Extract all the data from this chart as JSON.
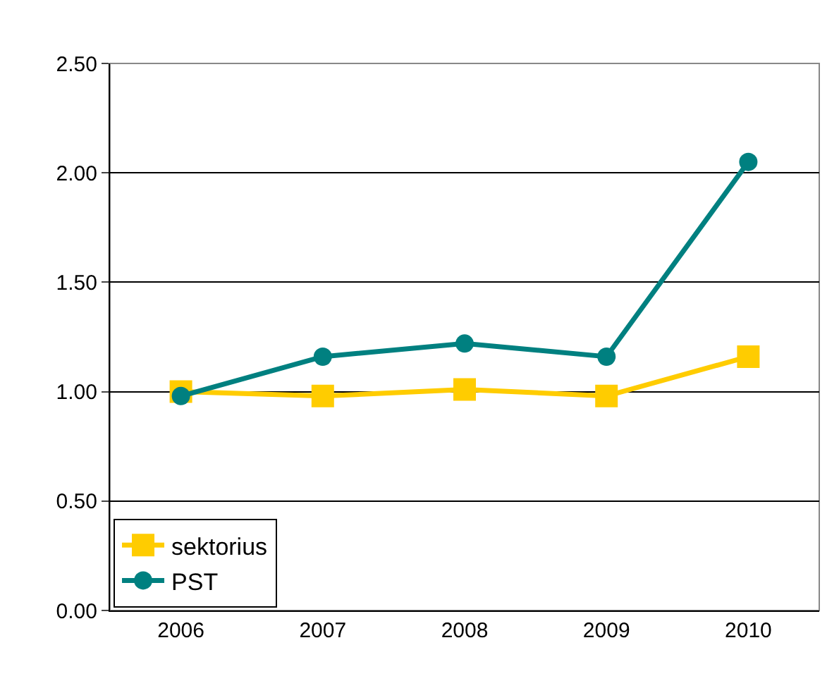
{
  "chart_data": {
    "type": "line",
    "categories": [
      "2006",
      "2007",
      "2008",
      "2009",
      "2010"
    ],
    "series": [
      {
        "name": "sektorius",
        "color": "#ffcc00",
        "values": [
          1.0,
          0.98,
          1.01,
          0.98,
          1.16
        ],
        "marker": "square"
      },
      {
        "name": "PST",
        "color": "#008080",
        "values": [
          0.98,
          1.16,
          1.22,
          1.16,
          2.05
        ],
        "marker": "circle"
      }
    ],
    "ylim": [
      0,
      2.5
    ],
    "yticks": [
      {
        "value": 0,
        "label": "0.00"
      },
      {
        "value": 0.5,
        "label": "0.50"
      },
      {
        "value": 1,
        "label": "1.00"
      },
      {
        "value": 1.5,
        "label": "1.50"
      },
      {
        "value": 2,
        "label": "2.00"
      },
      {
        "value": 2.5,
        "label": "2.50"
      }
    ],
    "grid": "y",
    "legend": "bottom left",
    "line_style": "solid"
  }
}
